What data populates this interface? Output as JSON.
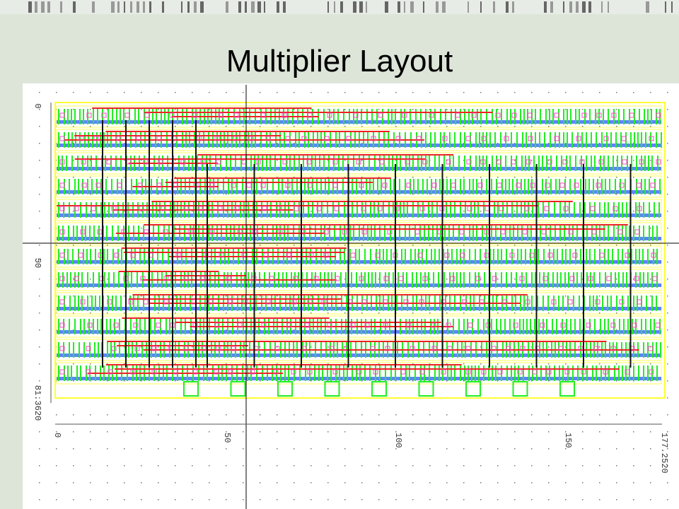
{
  "header": {
    "title": "Multiplier Layout"
  },
  "ruler": {
    "left_labels": [
      "0",
      "50",
      "81.3620"
    ],
    "bottom_labels": [
      "0",
      "50",
      "100",
      "150",
      "177.2520"
    ]
  }
}
